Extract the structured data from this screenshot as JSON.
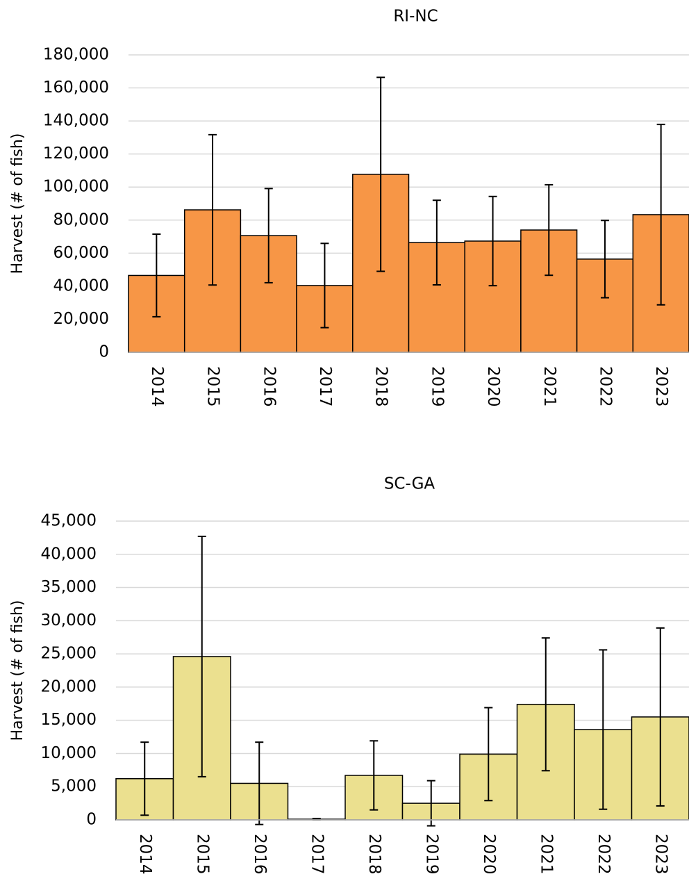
{
  "chart_data": [
    {
      "type": "bar",
      "title": "RI-NC",
      "y_label": "Harvest (# of fish)",
      "categories": [
        "2014",
        "2015",
        "2016",
        "2017",
        "2018",
        "2019",
        "2020",
        "2021",
        "2022",
        "2023"
      ],
      "values": [
        46500,
        86200,
        70600,
        40400,
        107700,
        66400,
        67300,
        74000,
        56400,
        83300
      ],
      "errors": [
        25000,
        45500,
        28500,
        25500,
        58700,
        25600,
        27000,
        27400,
        23400,
        54600
      ],
      "color": "#f79646",
      "ylim": [
        0,
        180000
      ],
      "yticks": [
        0,
        {
          "value": 20000,
          "label": "20,000"
        },
        {
          "value": 40000,
          "label": "40,000"
        },
        {
          "value": 60000,
          "label": "60,000"
        },
        {
          "value": 80000,
          "label": "80,000"
        },
        {
          "value": 100000,
          "label": "100,000"
        },
        {
          "value": 120000,
          "label": "120,000"
        },
        {
          "value": 140000,
          "label": "140,000"
        },
        {
          "value": 160000,
          "label": "160,000"
        },
        {
          "value": 180000,
          "label": "180,000"
        }
      ],
      "grid": true
    },
    {
      "type": "bar",
      "title": "SC-GA",
      "y_label": "Harvest (# of fish)",
      "categories": [
        "2014",
        "2015",
        "2016",
        "2017",
        "2018",
        "2019",
        "2020",
        "2021",
        "2022",
        "2023"
      ],
      "values": [
        6200,
        24600,
        5500,
        100,
        6700,
        2500,
        9900,
        17400,
        13600,
        15500
      ],
      "errors": [
        5500,
        18100,
        6200,
        100,
        5200,
        3400,
        7000,
        10000,
        12000,
        13400
      ],
      "color": "#ebe08f",
      "ylim": [
        0,
        45000
      ],
      "yticks": [
        0,
        {
          "value": 5000,
          "label": "5,000"
        },
        {
          "value": 10000,
          "label": "10,000"
        },
        {
          "value": 15000,
          "label": "15,000"
        },
        {
          "value": 20000,
          "label": "20,000"
        },
        {
          "value": 25000,
          "label": "25,000"
        },
        {
          "value": 30000,
          "label": "30,000"
        },
        {
          "value": 35000,
          "label": "35,000"
        },
        {
          "value": 40000,
          "label": "40,000"
        },
        {
          "value": 45000,
          "label": "45,000"
        }
      ],
      "grid": true
    }
  ]
}
